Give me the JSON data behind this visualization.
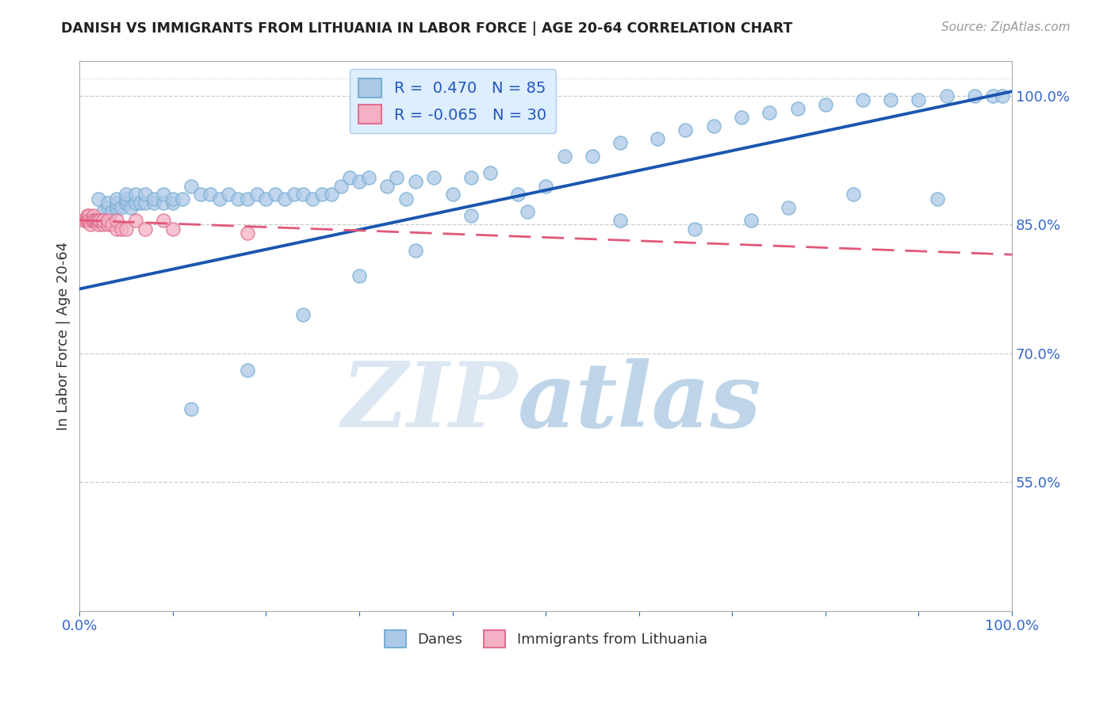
{
  "title": "DANISH VS IMMIGRANTS FROM LITHUANIA IN LABOR FORCE | AGE 20-64 CORRELATION CHART",
  "source": "Source: ZipAtlas.com",
  "ylabel": "In Labor Force | Age 20-64",
  "xlim": [
    0.0,
    1.0
  ],
  "ylim": [
    0.4,
    1.04
  ],
  "yticks": [
    0.55,
    0.7,
    0.85,
    1.0
  ],
  "ytick_labels": [
    "55.0%",
    "70.0%",
    "85.0%",
    "100.0%"
  ],
  "danes_R": 0.47,
  "danes_N": 85,
  "lith_R": -0.065,
  "lith_N": 30,
  "danes_color": "#adc9e8",
  "danes_edge": "#7aafd4",
  "lith_color": "#f4b0c4",
  "lith_edge": "#e07090",
  "trend_danes_color": "#1a56b0",
  "trend_lith_color": "#e05878",
  "legend_box_color": "#ddeeff",
  "legend_edge_color": "#aaccee",
  "danes_x": [
    0.02,
    0.025,
    0.03,
    0.03,
    0.035,
    0.04,
    0.04,
    0.04,
    0.045,
    0.05,
    0.05,
    0.05,
    0.055,
    0.06,
    0.06,
    0.065,
    0.07,
    0.07,
    0.08,
    0.08,
    0.09,
    0.09,
    0.1,
    0.1,
    0.11,
    0.12,
    0.13,
    0.14,
    0.15,
    0.16,
    0.17,
    0.18,
    0.19,
    0.2,
    0.21,
    0.22,
    0.23,
    0.24,
    0.25,
    0.26,
    0.27,
    0.28,
    0.29,
    0.3,
    0.31,
    0.33,
    0.34,
    0.35,
    0.36,
    0.38,
    0.4,
    0.42,
    0.44,
    0.47,
    0.5,
    0.52,
    0.55,
    0.58,
    0.62,
    0.65,
    0.68,
    0.71,
    0.74,
    0.77,
    0.8,
    0.84,
    0.87,
    0.9,
    0.93,
    0.96,
    0.98,
    0.99,
    0.72,
    0.76,
    0.83,
    0.92,
    0.66,
    0.58,
    0.48,
    0.42,
    0.36,
    0.3,
    0.24,
    0.18,
    0.12
  ],
  "danes_y": [
    0.88,
    0.865,
    0.87,
    0.875,
    0.865,
    0.87,
    0.875,
    0.88,
    0.87,
    0.875,
    0.88,
    0.885,
    0.87,
    0.875,
    0.885,
    0.875,
    0.875,
    0.885,
    0.875,
    0.88,
    0.875,
    0.885,
    0.875,
    0.88,
    0.88,
    0.895,
    0.885,
    0.885,
    0.88,
    0.885,
    0.88,
    0.88,
    0.885,
    0.88,
    0.885,
    0.88,
    0.885,
    0.885,
    0.88,
    0.885,
    0.885,
    0.895,
    0.905,
    0.9,
    0.905,
    0.895,
    0.905,
    0.88,
    0.9,
    0.905,
    0.885,
    0.905,
    0.91,
    0.885,
    0.895,
    0.93,
    0.93,
    0.945,
    0.95,
    0.96,
    0.965,
    0.975,
    0.98,
    0.985,
    0.99,
    0.995,
    0.995,
    0.995,
    1.0,
    1.0,
    1.0,
    1.0,
    0.855,
    0.87,
    0.885,
    0.88,
    0.845,
    0.855,
    0.865,
    0.86,
    0.82,
    0.79,
    0.745,
    0.68,
    0.635
  ],
  "lith_x": [
    0.005,
    0.007,
    0.008,
    0.009,
    0.01,
    0.01,
    0.01,
    0.012,
    0.013,
    0.015,
    0.015,
    0.017,
    0.018,
    0.02,
    0.02,
    0.022,
    0.025,
    0.025,
    0.03,
    0.03,
    0.035,
    0.04,
    0.04,
    0.045,
    0.05,
    0.06,
    0.07,
    0.09,
    0.1,
    0.18
  ],
  "lith_y": [
    0.855,
    0.855,
    0.86,
    0.855,
    0.855,
    0.86,
    0.855,
    0.85,
    0.855,
    0.86,
    0.855,
    0.855,
    0.855,
    0.85,
    0.855,
    0.855,
    0.85,
    0.855,
    0.85,
    0.855,
    0.85,
    0.845,
    0.855,
    0.845,
    0.845,
    0.855,
    0.845,
    0.855,
    0.845,
    0.84
  ],
  "watermark_zip": "ZIP",
  "watermark_atlas": "atlas",
  "background_color": "#ffffff",
  "grid_color": "#cccccc",
  "trend_dane_x0": 0.0,
  "trend_dane_y0": 0.775,
  "trend_dane_x1": 1.0,
  "trend_dane_y1": 1.005,
  "trend_lith_x0": 0.0,
  "trend_lith_y0": 0.855,
  "trend_lith_x1": 1.0,
  "trend_lith_y1": 0.815
}
